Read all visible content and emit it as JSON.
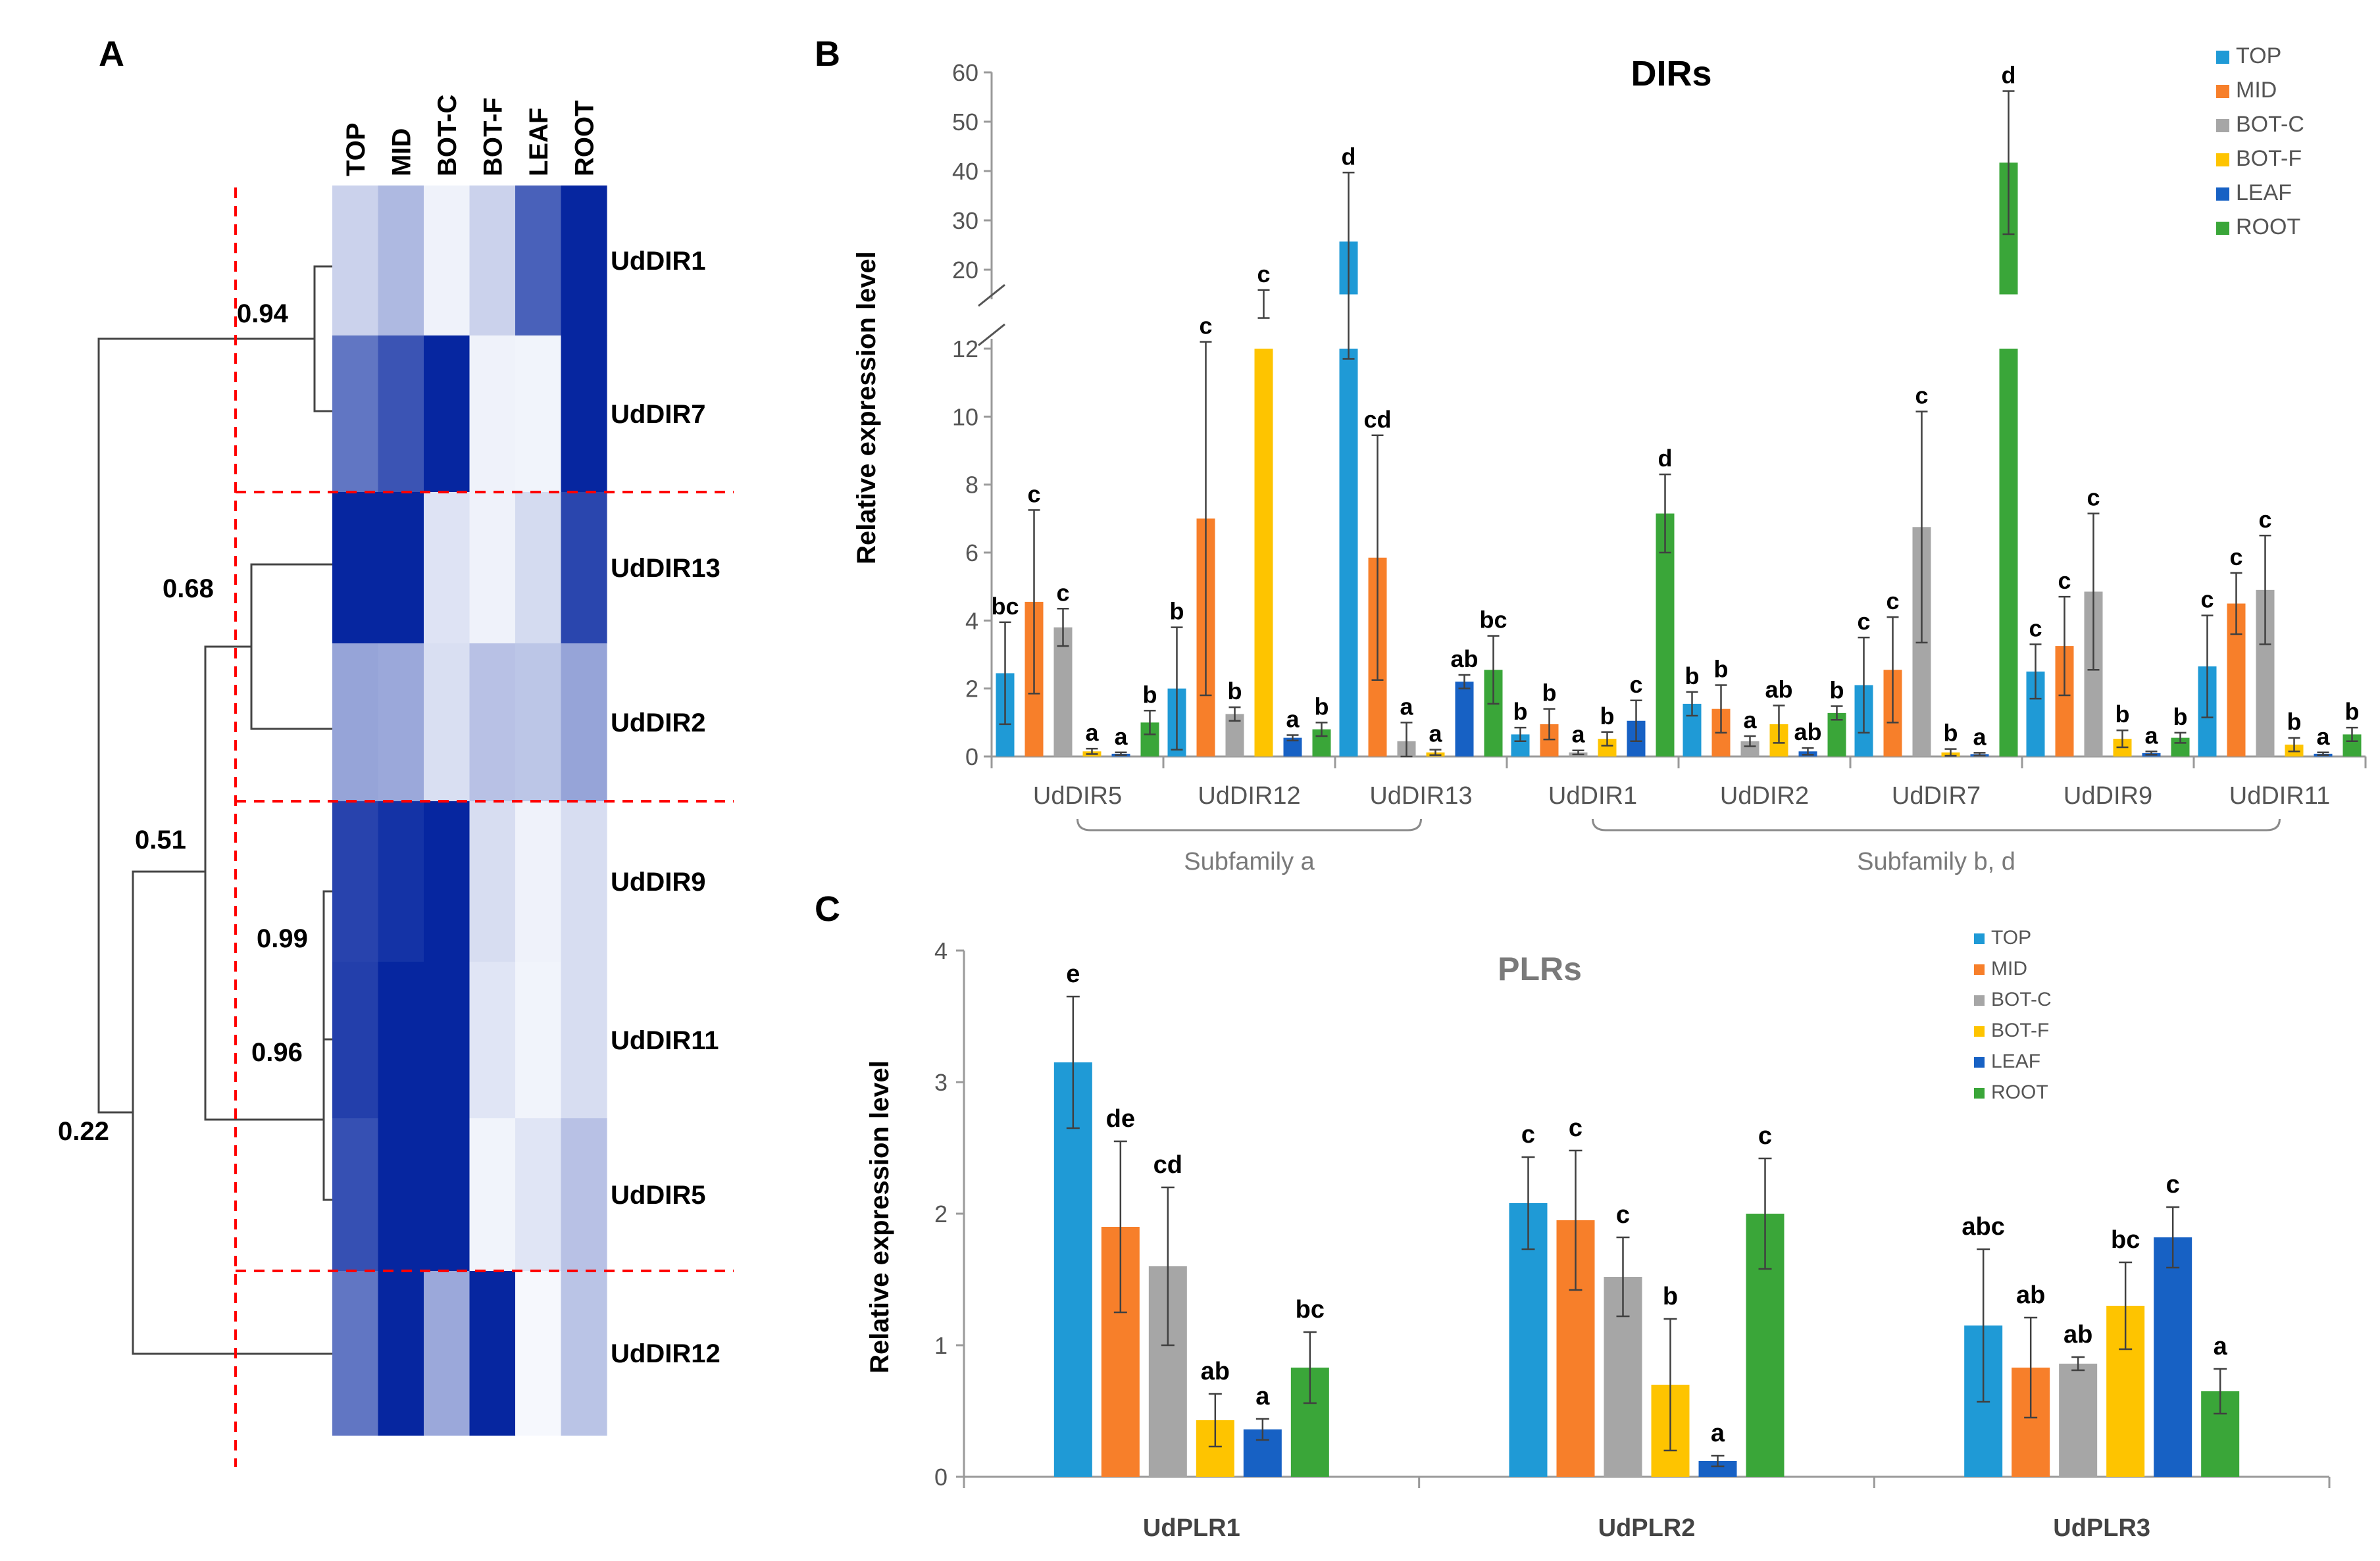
{
  "panels": {
    "A": {
      "letter": "A",
      "columns": [
        "TOP",
        "MID",
        "BOT-C",
        "BOT-F",
        "LEAF",
        "ROOT"
      ],
      "rows": [
        "UdDIR1",
        "UdDIR7",
        "UdDIR13",
        "UdDIR2",
        "UdDIR9",
        "UdDIR11",
        "UdDIR5",
        "UdDIR12"
      ],
      "heat_values": [
        [
          0.18,
          0.3,
          0.03,
          0.18,
          0.72,
          1.0
        ],
        [
          0.62,
          0.78,
          1.0,
          0.03,
          0.02,
          1.0
        ],
        [
          1.0,
          1.0,
          0.1,
          0.03,
          0.14,
          0.85
        ],
        [
          0.4,
          0.38,
          0.12,
          0.26,
          0.24,
          0.4
        ],
        [
          0.86,
          0.94,
          1.0,
          0.13,
          0.03,
          0.13
        ],
        [
          0.88,
          1.0,
          1.0,
          0.09,
          0.02,
          0.13
        ],
        [
          0.8,
          1.0,
          1.0,
          0.02,
          0.09,
          0.26
        ],
        [
          0.62,
          1.0,
          0.38,
          1.0,
          0.0,
          0.25
        ]
      ],
      "color_low": "#f6f8fd",
      "color_high": "#0626a0",
      "bootstrap": [
        "0.94",
        "0.68",
        "0.51",
        "0.99",
        "0.96",
        "0.22"
      ],
      "cut_line_color": "#ff0000",
      "tree_color": "#444444"
    },
    "B": {
      "letter": "B",
      "chart_data": {
        "type": "bar",
        "title": "DIRs",
        "ylabel": "Relative expression level",
        "y_lower_ticks": [
          "0",
          "2",
          "4",
          "6",
          "8",
          "10",
          "12"
        ],
        "y_upper_ticks": [
          "20",
          "30",
          "40",
          "50",
          "60"
        ],
        "ylim_lower": [
          0,
          12
        ],
        "ylim_upper": [
          15,
          60
        ],
        "categories": [
          "UdDIR5",
          "UdDIR12",
          "UdDIR13",
          "UdDIR1",
          "UdDIR2",
          "UdDIR7",
          "UdDIR9",
          "UdDIR11"
        ],
        "series": [
          {
            "name": "TOP",
            "color": "#1f9ad6",
            "values": [
              2.45,
              2.0,
              25.7,
              0.65,
              1.55,
              2.1,
              2.5,
              2.65
            ],
            "errors": [
              1.5,
              1.8,
              14.0,
              0.2,
              0.35,
              1.4,
              0.8,
              1.5
            ],
            "letters": [
              "bc",
              "b",
              "d",
              "b",
              "b",
              "c",
              "c",
              "c"
            ]
          },
          {
            "name": "MID",
            "color": "#f77f2a",
            "values": [
              4.55,
              7.0,
              5.85,
              0.95,
              1.4,
              2.55,
              3.25,
              4.5
            ],
            "errors": [
              2.7,
              5.2,
              3.6,
              0.45,
              0.7,
              1.55,
              1.45,
              0.9
            ],
            "letters": [
              "c",
              "c",
              "cd",
              "b",
              "b",
              "c",
              "c",
              "c"
            ]
          },
          {
            "name": "BOT-C",
            "color": "#a6a6a6",
            "values": [
              3.8,
              1.25,
              0.45,
              0.12,
              0.45,
              6.75,
              4.85,
              4.9
            ],
            "errors": [
              0.55,
              0.2,
              0.55,
              0.06,
              0.15,
              3.4,
              2.3,
              1.6
            ],
            "letters": [
              "c",
              "b",
              "a",
              "a",
              "a",
              "c",
              "c",
              "c"
            ]
          },
          {
            "name": "BOT-F",
            "color": "#fec400",
            "values": [
              0.15,
              14.4,
              0.12,
              0.52,
              0.95,
              0.12,
              0.52,
              0.35
            ],
            "errors": [
              0.08,
              1.5,
              0.08,
              0.2,
              0.55,
              0.1,
              0.25,
              0.2
            ],
            "letters": [
              "a",
              "c",
              "a",
              "b",
              "ab",
              "b",
              "b",
              "b"
            ]
          },
          {
            "name": "LEAF",
            "color": "#1761c4",
            "values": [
              0.08,
              0.55,
              2.2,
              1.05,
              0.15,
              0.07,
              0.1,
              0.08
            ],
            "errors": [
              0.04,
              0.08,
              0.2,
              0.6,
              0.1,
              0.04,
              0.05,
              0.04
            ],
            "letters": [
              "a",
              "a",
              "ab",
              "c",
              "ab",
              "a",
              "a",
              "a"
            ]
          },
          {
            "name": "ROOT",
            "color": "#3aa639",
            "values": [
              1.0,
              0.8,
              2.55,
              7.15,
              1.28,
              41.7,
              0.55,
              0.65
            ],
            "errors": [
              0.35,
              0.2,
              1.0,
              1.15,
              0.2,
              14.5,
              0.15,
              0.2
            ],
            "letters": [
              "b",
              "b",
              "bc",
              "d",
              "b",
              "d",
              "b",
              "b"
            ]
          }
        ],
        "groups": [
          {
            "label": "Subfamily a",
            "from": 0,
            "to": 2
          },
          {
            "label": "Subfamily b, d",
            "from": 3,
            "to": 7
          }
        ]
      }
    },
    "C": {
      "letter": "C",
      "chart_data": {
        "type": "bar",
        "title": "PLRs",
        "ylabel": "Relative expression level",
        "ylim": [
          0,
          4
        ],
        "y_ticks": [
          "0",
          "1",
          "2",
          "3",
          "4"
        ],
        "categories": [
          "UdPLR1",
          "UdPLR2",
          "UdPLR3"
        ],
        "series": [
          {
            "name": "TOP",
            "color": "#1f9ad6",
            "values": [
              3.15,
              2.08,
              1.15
            ],
            "errors": [
              0.5,
              0.35,
              0.58
            ],
            "letters": [
              "e",
              "c",
              "abc"
            ]
          },
          {
            "name": "MID",
            "color": "#f77f2a",
            "values": [
              1.9,
              1.95,
              0.83
            ],
            "errors": [
              0.65,
              0.53,
              0.38
            ],
            "letters": [
              "de",
              "c",
              "ab"
            ]
          },
          {
            "name": "BOT-C",
            "color": "#a6a6a6",
            "values": [
              1.6,
              1.52,
              0.86
            ],
            "errors": [
              0.6,
              0.3,
              0.05
            ],
            "letters": [
              "cd",
              "c",
              "ab"
            ]
          },
          {
            "name": "BOT-F",
            "color": "#fec400",
            "values": [
              0.43,
              0.7,
              1.3
            ],
            "errors": [
              0.2,
              0.5,
              0.33
            ],
            "letters": [
              "ab",
              "b",
              "bc"
            ]
          },
          {
            "name": "LEAF",
            "color": "#1761c4",
            "values": [
              0.36,
              0.12,
              1.82
            ],
            "errors": [
              0.08,
              0.04,
              0.23
            ],
            "letters": [
              "a",
              "a",
              "c"
            ]
          },
          {
            "name": "ROOT",
            "color": "#3aa639",
            "values": [
              0.83,
              2.0,
              0.65
            ],
            "errors": [
              0.27,
              0.42,
              0.17
            ],
            "letters": [
              "bc",
              "c",
              "a"
            ]
          }
        ]
      }
    }
  }
}
